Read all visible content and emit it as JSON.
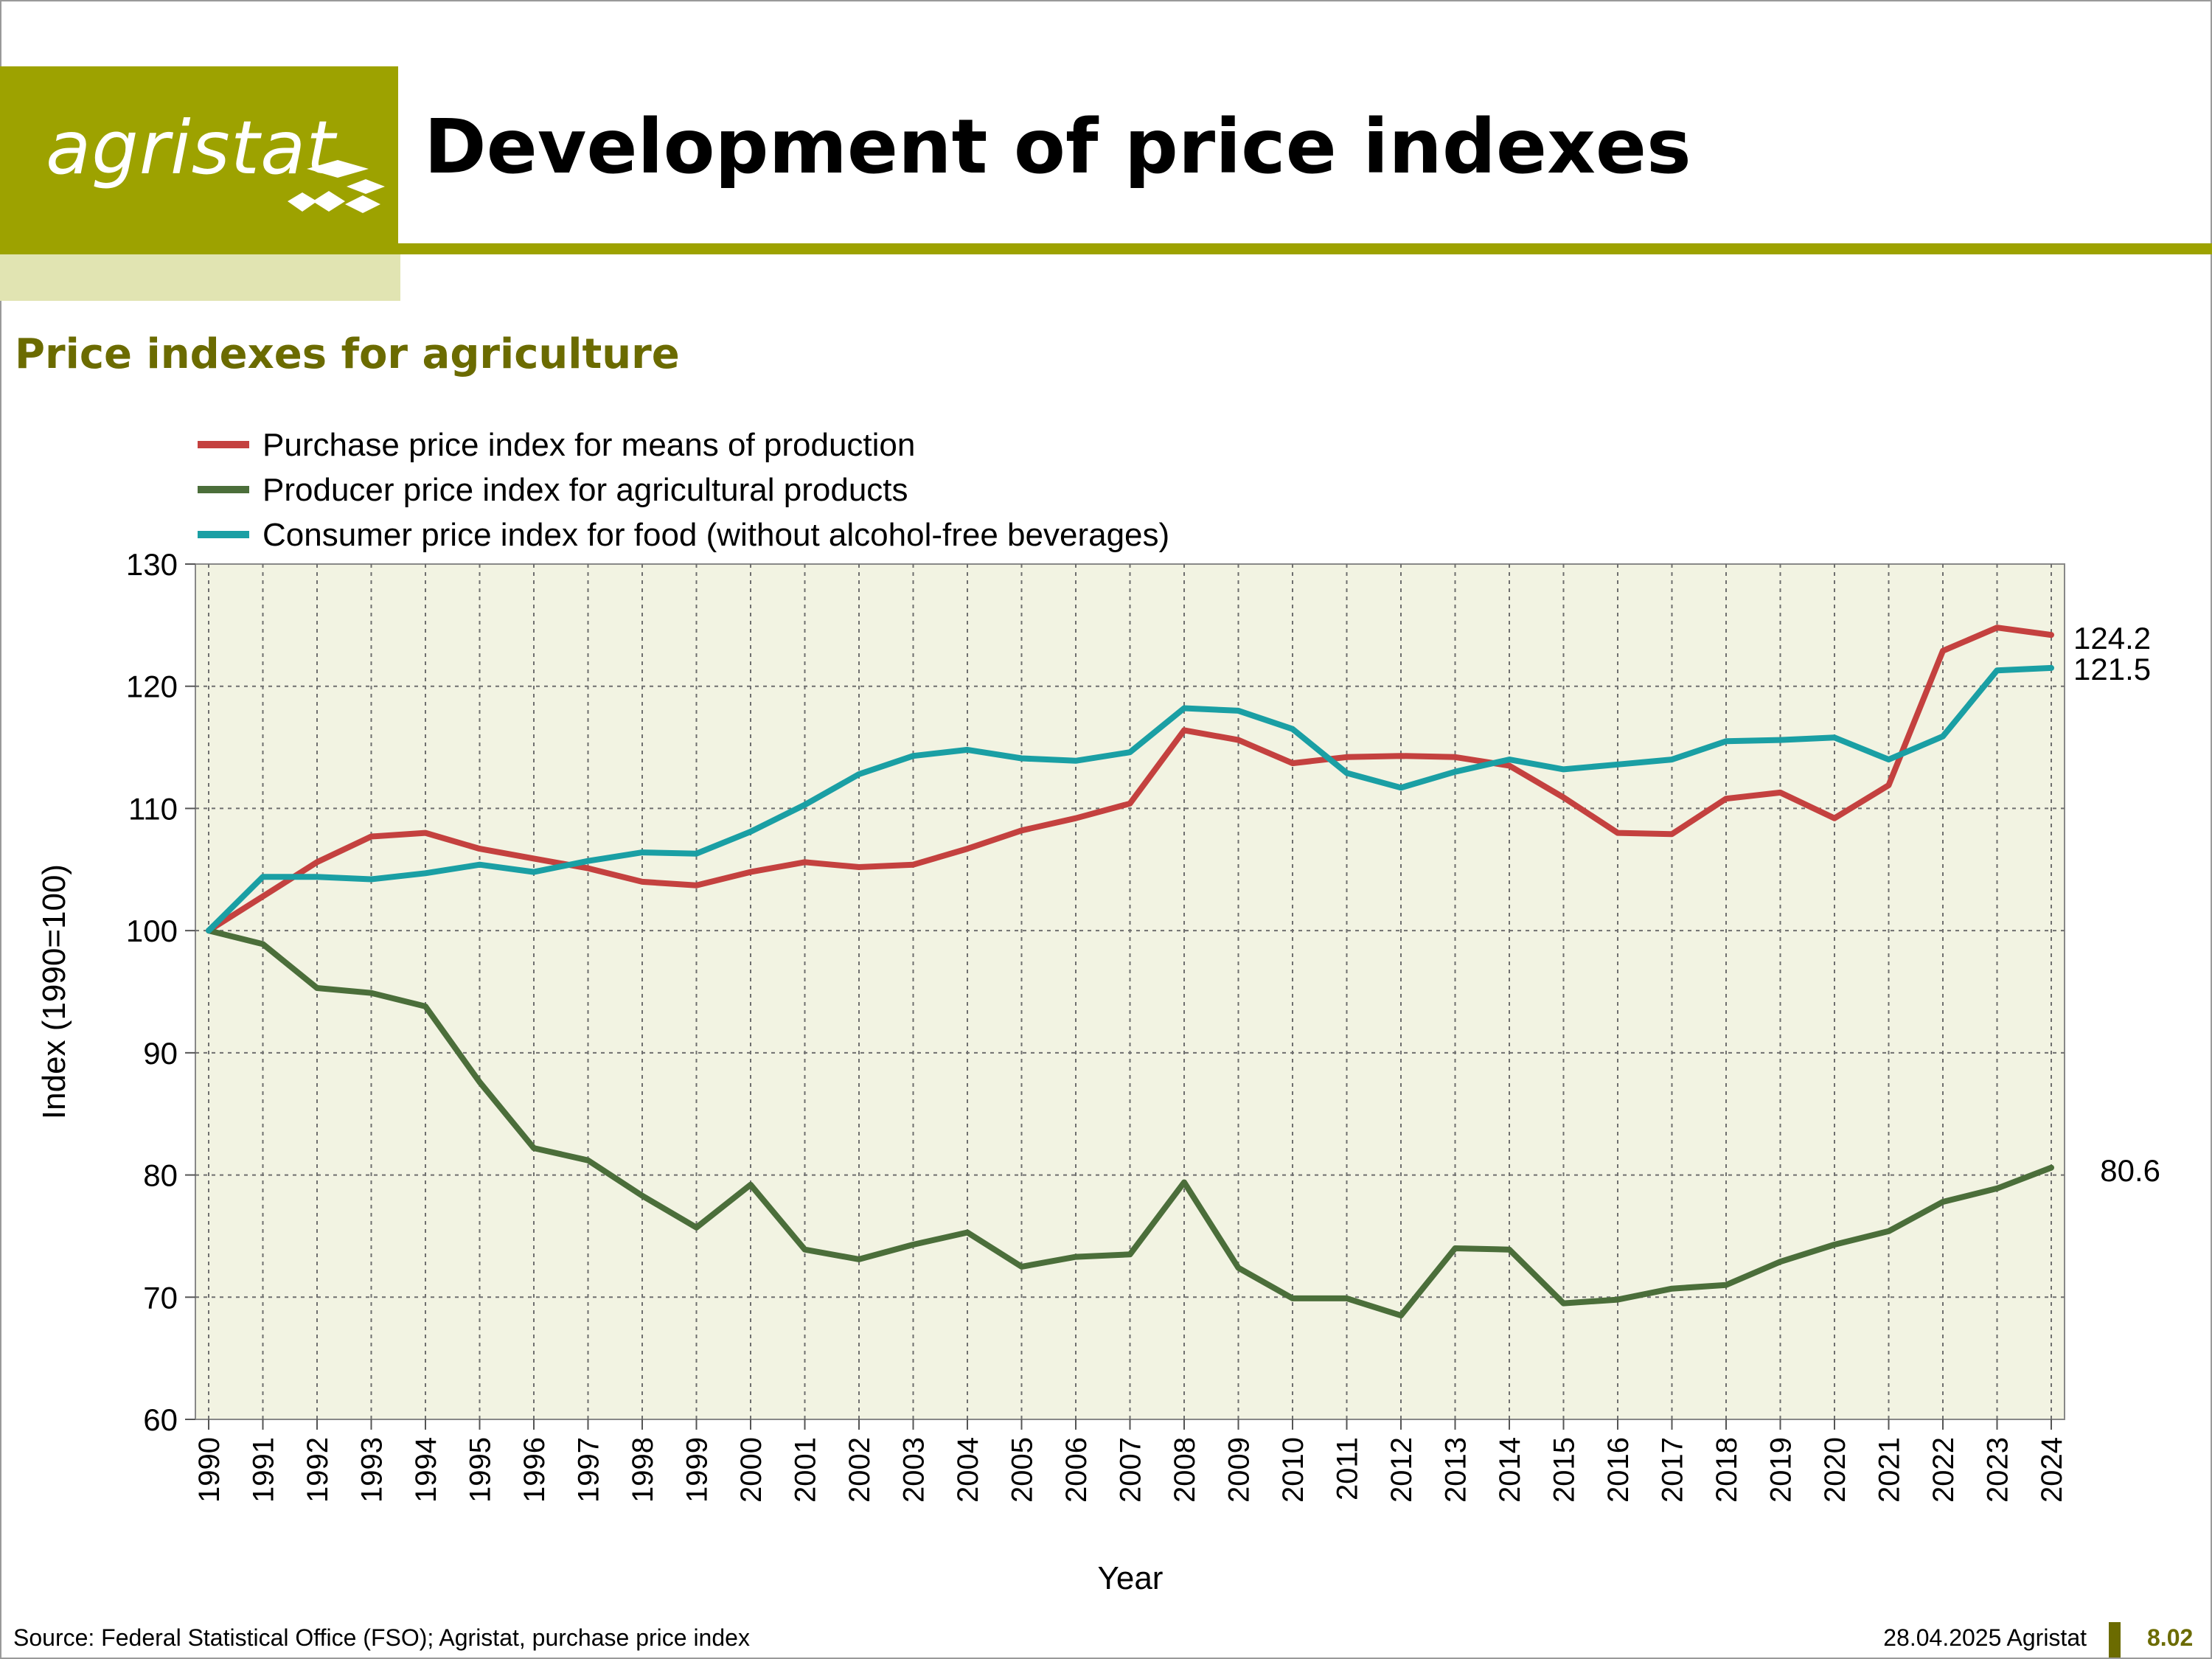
{
  "header": {
    "logo_text": "agristat",
    "title": "Development of price indexes",
    "subtitle": "Price indexes for agriculture"
  },
  "footer": {
    "source": "Source: Federal Statistical Office (FSO); Agristat, purchase price index",
    "date": "28.04.2025 Agristat",
    "page": "8.02"
  },
  "colors": {
    "brand": "#9da200",
    "brand_light": "#e1e4b2",
    "brand_dark": "#6b6b00",
    "plot_background": "#f2f3e2"
  },
  "chart_data": {
    "type": "line",
    "xlabel": "Year",
    "ylabel": "Index (1990=100)",
    "ylim": [
      60,
      130
    ],
    "yticks": [
      60,
      70,
      80,
      90,
      100,
      110,
      120,
      130
    ],
    "grid": true,
    "legend_position": "top-left",
    "x": [
      "1990",
      "1991",
      "1992",
      "1993",
      "1994",
      "1995",
      "1996",
      "1997",
      "1998",
      "1999",
      "2000",
      "2001",
      "2002",
      "2003",
      "2004",
      "2005",
      "2006",
      "2007",
      "2008",
      "2009",
      "2010",
      "2011",
      "2012",
      "2013",
      "2014",
      "2015",
      "2016",
      "2017",
      "2018",
      "2019",
      "2020",
      "2021",
      "2022",
      "2023",
      "2024"
    ],
    "series": [
      {
        "name": "Purchase price index for means of production",
        "color": "#c4413f",
        "end_label": "124.2",
        "values": [
          100.0,
          102.8,
          105.6,
          107.7,
          108.0,
          106.7,
          105.9,
          105.1,
          104.0,
          103.7,
          104.8,
          105.6,
          105.2,
          105.4,
          106.7,
          108.2,
          109.2,
          110.4,
          116.4,
          115.6,
          113.7,
          114.2,
          114.3,
          114.2,
          113.5,
          110.9,
          108.0,
          107.9,
          110.8,
          111.3,
          109.2,
          111.9,
          122.9,
          124.8,
          124.2
        ]
      },
      {
        "name": "Producer price index for agricultural products",
        "color": "#4b6e3a",
        "end_label": "80.6",
        "values": [
          100.0,
          98.9,
          95.3,
          94.9,
          93.8,
          87.6,
          82.2,
          81.2,
          78.3,
          75.7,
          79.2,
          73.9,
          73.1,
          74.3,
          75.3,
          72.5,
          73.3,
          73.5,
          79.4,
          72.4,
          69.9,
          69.9,
          68.5,
          74.0,
          73.9,
          69.5,
          69.8,
          70.7,
          71.0,
          72.9,
          74.3,
          75.4,
          77.8,
          78.9,
          80.6
        ]
      },
      {
        "name": "Consumer price index for food (without alcohol-free beverages)",
        "color": "#1a9fa4",
        "end_label": "121.5",
        "values": [
          100.0,
          104.4,
          104.4,
          104.2,
          104.7,
          105.4,
          104.8,
          105.7,
          106.4,
          106.3,
          108.1,
          110.3,
          112.8,
          114.3,
          114.8,
          114.1,
          113.9,
          114.6,
          118.2,
          118.0,
          116.5,
          112.9,
          111.7,
          113.0,
          114.0,
          113.2,
          113.6,
          114.0,
          115.5,
          115.6,
          115.8,
          114.0,
          115.9,
          121.3,
          121.5
        ]
      }
    ]
  }
}
